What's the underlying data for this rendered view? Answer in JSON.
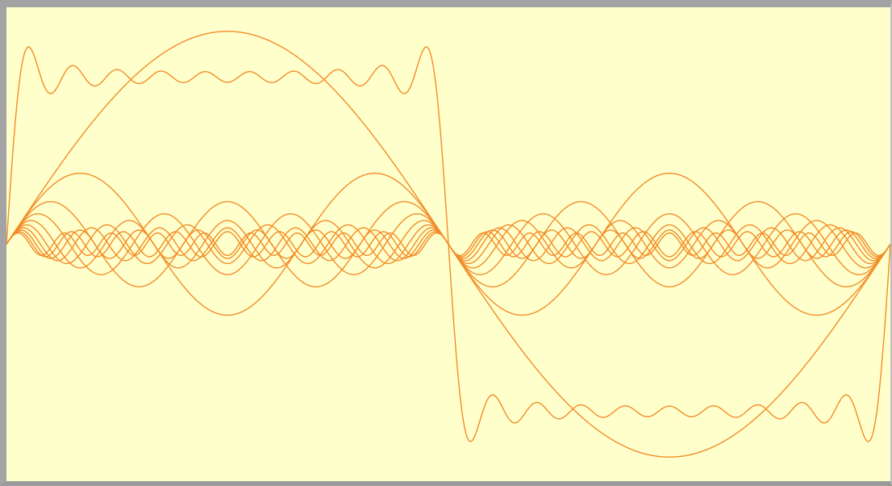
{
  "colors": {
    "background": "#ffffcc",
    "curve": "#f28c28",
    "frame": "#a3a3a3"
  },
  "chart_data": {
    "type": "line",
    "title": "",
    "xlabel": "",
    "ylabel": "",
    "grid": false,
    "legend": "none",
    "xlim": [
      0,
      2
    ],
    "ylim": [
      -1.25,
      1.25
    ],
    "x_period": 2,
    "series": [
      {
        "kind": "fourier-component",
        "harmonic": 1,
        "amplitude": 1.2732
      },
      {
        "kind": "fourier-component",
        "harmonic": 3,
        "amplitude": 0.4244
      },
      {
        "kind": "fourier-component",
        "harmonic": 5,
        "amplitude": 0.2546
      },
      {
        "kind": "fourier-component",
        "harmonic": 7,
        "amplitude": 0.1819
      },
      {
        "kind": "fourier-component",
        "harmonic": 9,
        "amplitude": 0.1415
      },
      {
        "kind": "fourier-component",
        "harmonic": 11,
        "amplitude": 0.1157
      },
      {
        "kind": "fourier-component",
        "harmonic": 13,
        "amplitude": 0.0979
      },
      {
        "kind": "fourier-component",
        "harmonic": 15,
        "amplitude": 0.0849
      },
      {
        "kind": "fourier-component",
        "harmonic": 17,
        "amplitude": 0.0749
      },
      {
        "kind": "fourier-component",
        "harmonic": 19,
        "amplitude": 0.067
      },
      {
        "kind": "fourier-sum",
        "harmonics": [
          1,
          3,
          5,
          7,
          9,
          11,
          13,
          15,
          17,
          19
        ],
        "target": "square-wave"
      }
    ]
  }
}
